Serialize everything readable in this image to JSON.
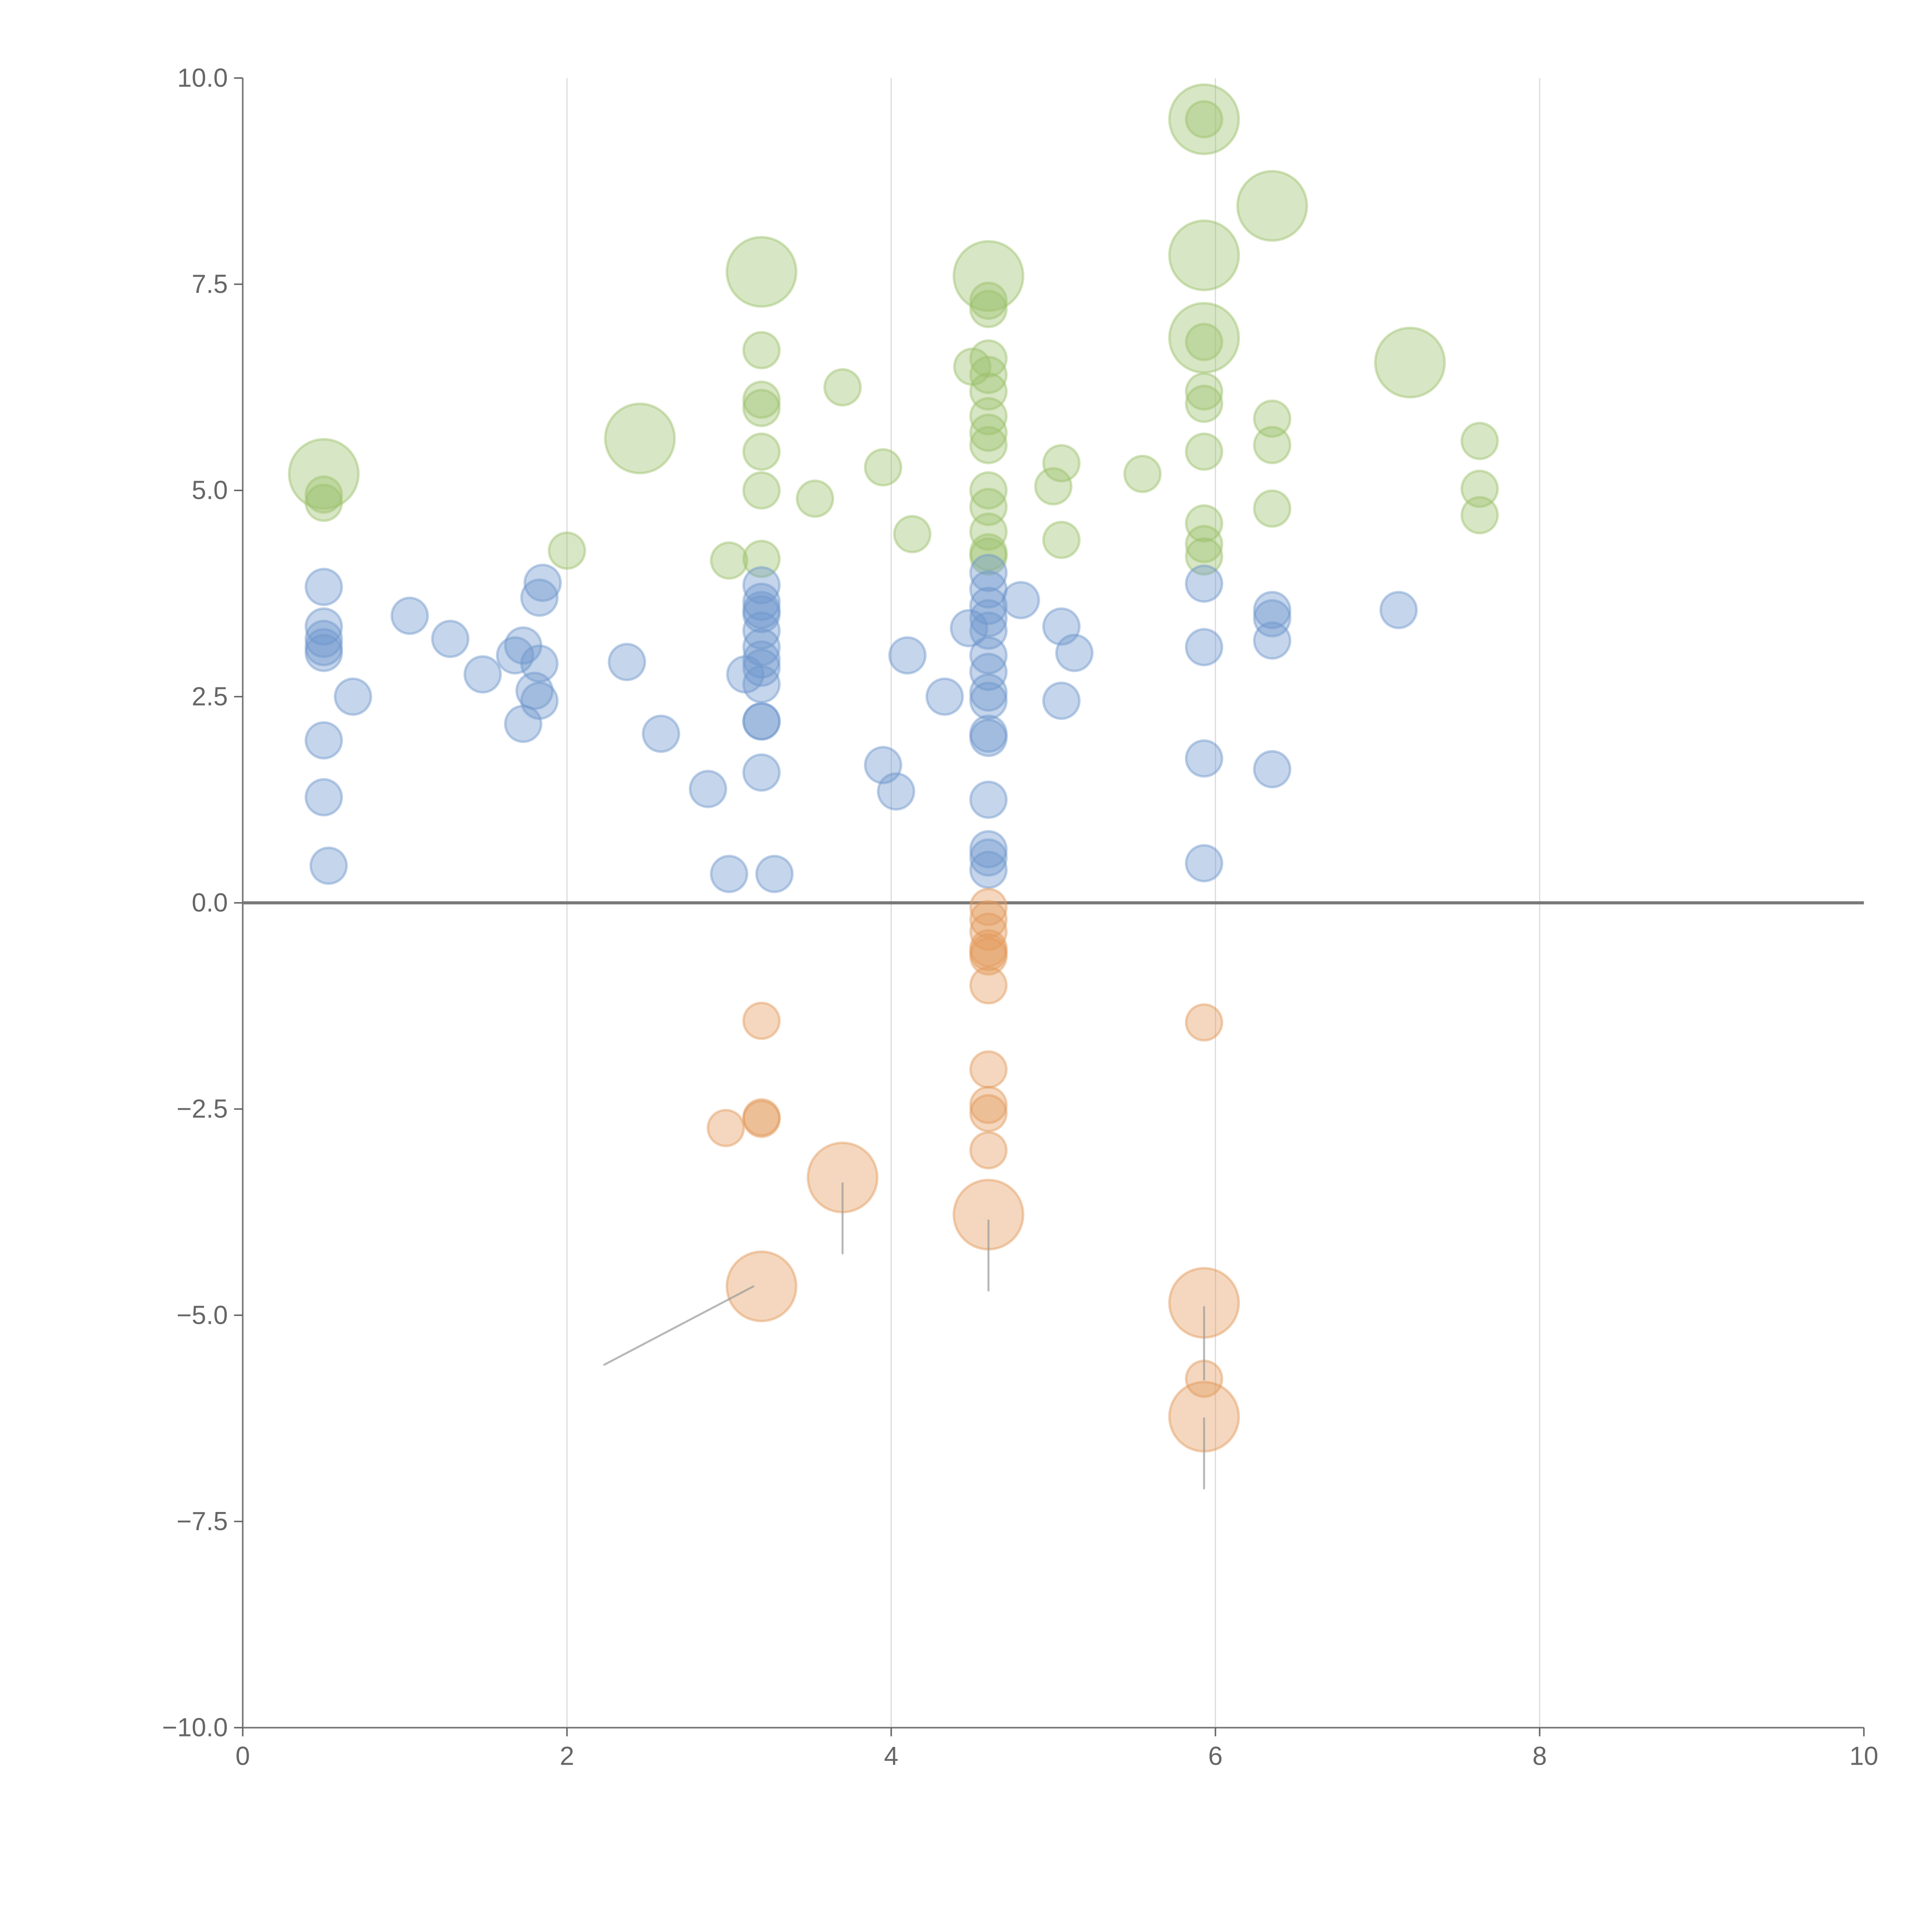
{
  "chart_data": {
    "type": "scatter",
    "title": "",
    "xlabel": "",
    "ylabel": "",
    "xlim": [
      0,
      10
    ],
    "ylim": [
      -10,
      10
    ],
    "x_ticks": [
      "0",
      "2",
      "4",
      "6",
      "8",
      "10"
    ],
    "y_ticks": [
      "10.0",
      "7.5",
      "5.0",
      "2.5",
      "0.0",
      "−2.5",
      "−5.0",
      "−7.5",
      "−10.0"
    ],
    "x_tick_values": [
      0,
      2,
      4,
      6,
      8,
      10
    ],
    "y_tick_values": [
      10,
      7.5,
      5,
      2.5,
      0,
      -2.5,
      -5,
      -7.5,
      -10
    ],
    "grid": "vertical",
    "point_format": "[x, y, size]",
    "series": [
      {
        "name": "green",
        "color": "#9bc06b",
        "points": [
          [
            0.5,
            5.2,
            2
          ],
          [
            2.45,
            5.63,
            2
          ],
          [
            3.2,
            7.65,
            2
          ],
          [
            4.6,
            7.6,
            2
          ],
          [
            5.93,
            9.5,
            2
          ],
          [
            6.35,
            8.45,
            2
          ],
          [
            5.93,
            7.85,
            2
          ],
          [
            5.93,
            6.85,
            2
          ],
          [
            7.2,
            6.55,
            2
          ],
          [
            0.5,
            4.95,
            1
          ],
          [
            0.5,
            4.85,
            1
          ],
          [
            2.0,
            4.27,
            1
          ],
          [
            3.0,
            4.15,
            1
          ],
          [
            3.2,
            4.17,
            1
          ],
          [
            3.2,
            5.0,
            1
          ],
          [
            3.2,
            5.47,
            1
          ],
          [
            3.2,
            6.0,
            1
          ],
          [
            3.2,
            6.1,
            1
          ],
          [
            3.2,
            6.7,
            1
          ],
          [
            3.53,
            4.9,
            1
          ],
          [
            3.7,
            6.25,
            1
          ],
          [
            3.95,
            5.28,
            1
          ],
          [
            4.13,
            4.47,
            1
          ],
          [
            4.5,
            6.5,
            1
          ],
          [
            4.6,
            7.3,
            1
          ],
          [
            4.6,
            7.2,
            1
          ],
          [
            4.6,
            6.6,
            1
          ],
          [
            4.6,
            6.4,
            1
          ],
          [
            4.6,
            6.2,
            1
          ],
          [
            4.6,
            5.9,
            1
          ],
          [
            4.6,
            5.7,
            1
          ],
          [
            4.6,
            5.55,
            1
          ],
          [
            4.6,
            5.0,
            1
          ],
          [
            4.6,
            4.8,
            1
          ],
          [
            4.6,
            4.5,
            1
          ],
          [
            4.6,
            4.25,
            1
          ],
          [
            4.6,
            4.2,
            1
          ],
          [
            5.0,
            5.05,
            1
          ],
          [
            5.05,
            5.33,
            1
          ],
          [
            5.05,
            4.4,
            1
          ],
          [
            5.55,
            5.2,
            1
          ],
          [
            5.93,
            9.5,
            1
          ],
          [
            5.93,
            6.8,
            1
          ],
          [
            5.93,
            6.2,
            1
          ],
          [
            5.93,
            6.05,
            1
          ],
          [
            5.93,
            5.47,
            1
          ],
          [
            5.93,
            4.6,
            1
          ],
          [
            5.93,
            4.35,
            1
          ],
          [
            5.93,
            4.2,
            1
          ],
          [
            6.35,
            5.87,
            1
          ],
          [
            6.35,
            5.55,
            1
          ],
          [
            6.35,
            4.78,
            1
          ],
          [
            7.63,
            5.6,
            1
          ],
          [
            7.63,
            5.02,
            1
          ],
          [
            7.63,
            4.7,
            1
          ]
        ]
      },
      {
        "name": "blue",
        "color": "#6f97cc",
        "points": [
          [
            0.5,
            3.83,
            1
          ],
          [
            0.5,
            3.35,
            1
          ],
          [
            0.5,
            3.2,
            1
          ],
          [
            0.5,
            3.1,
            1
          ],
          [
            0.5,
            3.03,
            1
          ],
          [
            0.5,
            1.97,
            1
          ],
          [
            0.5,
            1.28,
            1
          ],
          [
            0.53,
            0.45,
            1
          ],
          [
            0.68,
            2.5,
            1
          ],
          [
            1.03,
            3.48,
            1
          ],
          [
            1.28,
            3.2,
            1
          ],
          [
            1.48,
            2.77,
            1
          ],
          [
            1.68,
            3.0,
            1
          ],
          [
            1.73,
            3.12,
            1
          ],
          [
            1.73,
            2.17,
            1
          ],
          [
            1.8,
            2.57,
            1
          ],
          [
            1.83,
            2.45,
            1
          ],
          [
            1.83,
            2.9,
            1
          ],
          [
            1.83,
            3.7,
            1
          ],
          [
            1.85,
            3.88,
            1
          ],
          [
            2.37,
            2.92,
            1
          ],
          [
            2.58,
            2.05,
            1
          ],
          [
            2.87,
            1.38,
            1
          ],
          [
            3.0,
            0.35,
            1
          ],
          [
            3.1,
            2.77,
            1
          ],
          [
            3.2,
            3.85,
            1
          ],
          [
            3.2,
            3.65,
            1
          ],
          [
            3.2,
            3.55,
            1
          ],
          [
            3.2,
            3.5,
            1
          ],
          [
            3.2,
            3.3,
            1
          ],
          [
            3.2,
            3.1,
            1
          ],
          [
            3.2,
            2.95,
            1
          ],
          [
            3.2,
            2.85,
            1
          ],
          [
            3.2,
            2.65,
            1
          ],
          [
            3.2,
            2.2,
            1
          ],
          [
            3.2,
            2.2,
            1
          ],
          [
            3.2,
            1.58,
            1
          ],
          [
            3.28,
            0.35,
            1
          ],
          [
            3.95,
            1.67,
            1
          ],
          [
            4.03,
            1.35,
            1
          ],
          [
            4.1,
            3.0,
            1
          ],
          [
            4.33,
            2.5,
            1
          ],
          [
            4.48,
            3.33,
            1
          ],
          [
            4.6,
            4.0,
            1
          ],
          [
            4.6,
            3.8,
            1
          ],
          [
            4.6,
            3.6,
            1
          ],
          [
            4.6,
            3.45,
            1
          ],
          [
            4.6,
            3.3,
            1
          ],
          [
            4.6,
            3.0,
            1
          ],
          [
            4.6,
            2.8,
            1
          ],
          [
            4.6,
            2.55,
            1
          ],
          [
            4.6,
            2.45,
            1
          ],
          [
            4.6,
            2.05,
            1
          ],
          [
            4.6,
            2.0,
            1
          ],
          [
            4.6,
            1.25,
            1
          ],
          [
            4.6,
            0.65,
            1
          ],
          [
            4.6,
            0.55,
            1
          ],
          [
            4.6,
            0.4,
            1
          ],
          [
            4.8,
            3.67,
            1
          ],
          [
            5.05,
            3.35,
            1
          ],
          [
            5.05,
            2.45,
            1
          ],
          [
            5.13,
            3.03,
            1
          ],
          [
            5.93,
            3.87,
            1
          ],
          [
            5.93,
            3.1,
            1
          ],
          [
            5.93,
            1.75,
            1
          ],
          [
            5.93,
            0.48,
            1
          ],
          [
            6.35,
            3.55,
            1
          ],
          [
            6.35,
            3.45,
            1
          ],
          [
            6.35,
            3.18,
            1
          ],
          [
            6.35,
            1.62,
            1
          ],
          [
            7.13,
            3.55,
            1
          ]
        ]
      },
      {
        "name": "orange",
        "color": "#e39a5c",
        "points": [
          [
            3.2,
            -1.43,
            1
          ],
          [
            2.98,
            -2.73,
            1
          ],
          [
            3.2,
            -2.6,
            1
          ],
          [
            3.2,
            -2.62,
            1
          ],
          [
            4.6,
            -0.05,
            1
          ],
          [
            4.6,
            -0.2,
            1
          ],
          [
            4.6,
            -0.35,
            1
          ],
          [
            4.6,
            -0.55,
            1
          ],
          [
            4.6,
            -0.6,
            1
          ],
          [
            4.6,
            -0.65,
            1
          ],
          [
            4.6,
            -1.0,
            1
          ],
          [
            4.6,
            -2.02,
            1
          ],
          [
            4.6,
            -2.45,
            1
          ],
          [
            4.6,
            -2.55,
            1
          ],
          [
            4.6,
            -3.0,
            1
          ],
          [
            5.93,
            -1.45,
            1
          ],
          [
            5.93,
            -5.77,
            1
          ],
          [
            3.7,
            -3.33,
            2
          ],
          [
            4.6,
            -3.78,
            2
          ],
          [
            3.2,
            -4.65,
            2
          ],
          [
            5.93,
            -4.85,
            2
          ],
          [
            5.93,
            -6.23,
            2
          ]
        ]
      }
    ],
    "annotation_leaders": [
      [
        [
          3.15,
          -4.65
        ],
        [
          2.23,
          -5.6
        ]
      ],
      [
        [
          3.7,
          -3.4
        ],
        [
          3.7,
          -4.25
        ]
      ],
      [
        [
          4.6,
          -3.85
        ],
        [
          4.6,
          -4.7
        ]
      ],
      [
        [
          5.93,
          -4.9
        ],
        [
          5.93,
          -5.78
        ]
      ],
      [
        [
          5.93,
          -6.25
        ],
        [
          5.93,
          -7.1
        ]
      ]
    ]
  }
}
